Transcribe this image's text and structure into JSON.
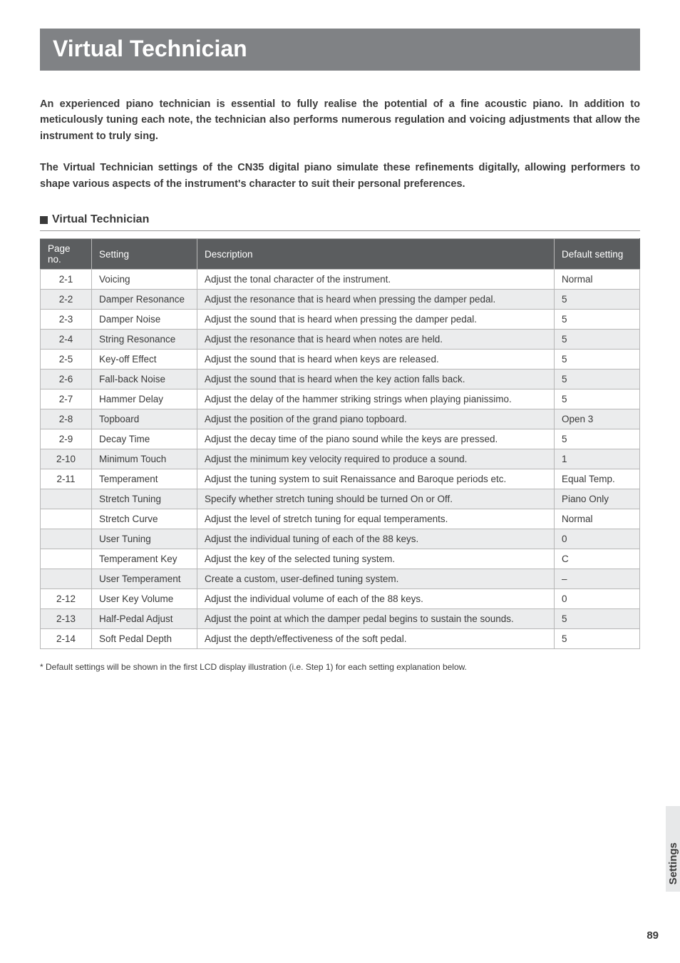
{
  "title": "Virtual Technician",
  "intro1": "An experienced piano technician is essential to fully realise the potential of a fine acoustic piano. In addition to meticulously tuning each note, the technician also performs numerous regulation and voicing adjustments that allow the instrument to truly sing.",
  "intro2": "The Virtual Technician settings of the CN35 digital piano simulate these refinements digitally, allowing performers to shape various aspects of the instrument's character to suit their personal preferences.",
  "section_title": "Virtual Technician",
  "table": {
    "headers": {
      "page": "Page no.",
      "setting": "Setting",
      "description": "Description",
      "default": "Default setting"
    },
    "rows": [
      {
        "page": "2-1",
        "setting": "Voicing",
        "description": "Adjust the tonal character of the instrument.",
        "default": "Normal",
        "shaded": false
      },
      {
        "page": "2-2",
        "setting": "Damper Resonance",
        "description": "Adjust the resonance that is heard when pressing the damper pedal.",
        "default": "5",
        "shaded": true
      },
      {
        "page": "2-3",
        "setting": "Damper Noise",
        "description": "Adjust the sound that is heard when pressing the damper pedal.",
        "default": "5",
        "shaded": false
      },
      {
        "page": "2-4",
        "setting": "String Resonance",
        "description": "Adjust the resonance that is heard when notes are held.",
        "default": "5",
        "shaded": true
      },
      {
        "page": "2-5",
        "setting": "Key-off Effect",
        "description": "Adjust the sound that is heard when keys are released.",
        "default": "5",
        "shaded": false
      },
      {
        "page": "2-6",
        "setting": "Fall-back Noise",
        "description": "Adjust the sound that is heard when the key action falls back.",
        "default": "5",
        "shaded": true
      },
      {
        "page": "2-7",
        "setting": "Hammer Delay",
        "description": "Adjust the delay of the hammer striking strings when playing pianissimo.",
        "default": "5",
        "shaded": false
      },
      {
        "page": "2-8",
        "setting": "Topboard",
        "description": "Adjust the position of the grand piano topboard.",
        "default": "Open 3",
        "shaded": true
      },
      {
        "page": "2-9",
        "setting": "Decay Time",
        "description": "Adjust the decay time of the piano sound while the keys are pressed.",
        "default": "5",
        "shaded": false
      },
      {
        "page": "2-10",
        "setting": "Minimum Touch",
        "description": "Adjust the minimum key velocity required to produce a sound.",
        "default": "1",
        "shaded": true
      },
      {
        "page": "2-11",
        "setting": "Temperament",
        "description": "Adjust the tuning system to suit Renaissance and Baroque periods etc.",
        "default": "Equal Temp.",
        "shaded": false
      },
      {
        "page": "",
        "setting": "Stretch Tuning",
        "description": "Specify whether stretch tuning should be turned On or Off.",
        "default": "Piano Only",
        "shaded": true
      },
      {
        "page": "",
        "setting": "Stretch Curve",
        "description": "Adjust the level of stretch tuning for equal temperaments.",
        "default": "Normal",
        "shaded": false
      },
      {
        "page": "",
        "setting": "User Tuning",
        "description": "Adjust the individual tuning of each of the 88 keys.",
        "default": "0",
        "shaded": true
      },
      {
        "page": "",
        "setting": "Temperament Key",
        "description": "Adjust the key of the selected tuning system.",
        "default": "C",
        "shaded": false
      },
      {
        "page": "",
        "setting": "User Temperament",
        "description": "Create a custom, user-defined tuning system.",
        "default": "–",
        "shaded": true
      },
      {
        "page": "2-12",
        "setting": "User Key Volume",
        "description": "Adjust the individual volume of each of the 88 keys.",
        "default": "0",
        "shaded": false
      },
      {
        "page": "2-13",
        "setting": "Half-Pedal Adjust",
        "description": "Adjust the point at which the damper pedal begins to sustain the sounds.",
        "default": "5",
        "shaded": true
      },
      {
        "page": "2-14",
        "setting": "Soft Pedal Depth",
        "description": "Adjust the depth/effectiveness of the soft pedal.",
        "default": "5",
        "shaded": false
      }
    ]
  },
  "footnote": "* Default settings will be shown in the first LCD display illustration (i.e. Step 1) for each setting explanation below.",
  "side_tab": "Settings",
  "page_number": "89",
  "style": {
    "title_bg": "#808285",
    "header_bg": "#5b5d5f",
    "shaded_bg": "#ebeced",
    "border_color": "#b7b7b7",
    "tab_bg": "#e7e8e9",
    "text_color": "#3a3a3a"
  }
}
